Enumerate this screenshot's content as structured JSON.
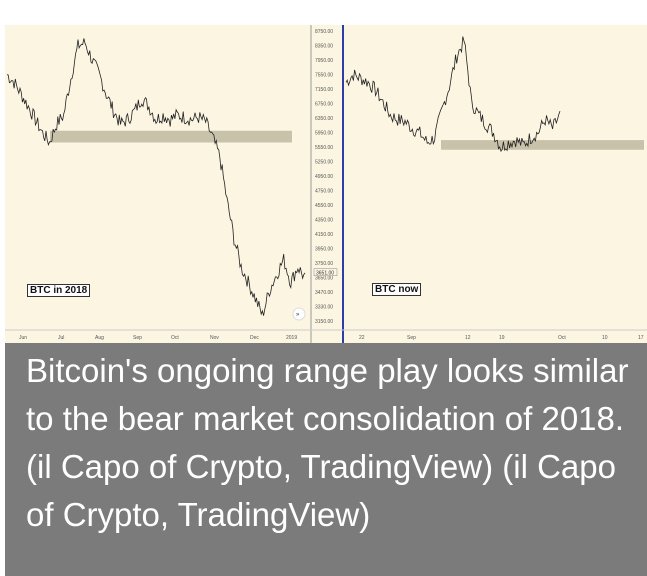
{
  "caption": "Bitcoin's ongoing range play looks similar to the bear market consolidation of 2018. (il Capo of Crypto, TradingView) (il Capo of Crypto, TradingView)",
  "chart_data": [
    {
      "type": "line",
      "title": "BTC in 2018",
      "x_ticks": [
        "Jun",
        "Jul",
        "Aug",
        "Sep",
        "Oct",
        "Nov",
        "Dec",
        "2019"
      ],
      "y_ticks": [
        "8750.00",
        "8350.00",
        "7950.00",
        "7550.00",
        "7150.00",
        "6750.00",
        "6350.00",
        "5950.00",
        "5550.00",
        "5250.00",
        "4950.00",
        "4750.00",
        "4550.00",
        "4350.00",
        "4150.00",
        "3950.00",
        "3750.00",
        "3650.00",
        "3470.00",
        "3330.00",
        "3150.00"
      ],
      "last_price": "3651.00",
      "range_zone": [
        5900,
        6150
      ],
      "values": [
        7500,
        7300,
        7000,
        6700,
        6400,
        6100,
        5900,
        6300,
        6500,
        7400,
        8300,
        8400,
        7900,
        7500,
        7000,
        6600,
        6300,
        6400,
        6600,
        6900,
        6700,
        6400,
        6500,
        6400,
        6500,
        6450,
        6400,
        6450,
        6350,
        6000,
        5600,
        4800,
        4200,
        3800,
        3600,
        3400,
        3200,
        3500,
        3700,
        3900,
        3600,
        3800,
        3650
      ]
    },
    {
      "type": "line",
      "title": "BTC now",
      "x_ticks": [
        "22",
        "Sep",
        "12",
        "19",
        "Oct",
        "10",
        "17"
      ],
      "range_zone": [
        5750,
        5950
      ],
      "values": [
        7300,
        7500,
        7400,
        7300,
        7100,
        6800,
        6500,
        6400,
        6350,
        6200,
        6100,
        5900,
        6000,
        6600,
        7200,
        8000,
        8450,
        6800,
        6500,
        6300,
        6100,
        5800,
        5900,
        5950,
        5850,
        6000,
        6100,
        6400,
        6200,
        6500
      ]
    }
  ],
  "colors": {
    "chart_bg": "#fbf5e2",
    "divider": "#2c3fa8",
    "zone": "#c9c2ab",
    "caption_bg": "#7b7b7b"
  }
}
